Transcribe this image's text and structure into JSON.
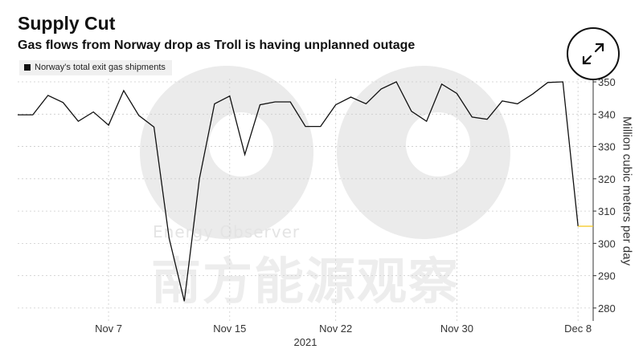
{
  "title": "Supply Cut",
  "subtitle": "Gas flows from Norway drop as Troll is having unplanned outage",
  "watermark": {
    "english": "Energy Observer",
    "chinese": "南方能源观察"
  },
  "expand_icon": "expand-arrows-icon",
  "colors": {
    "line": "#111111",
    "last_marker": "#f5c518",
    "grid": "#cccccc",
    "watermark": "#ebebeb"
  },
  "chart_data": {
    "type": "line",
    "title": "Supply Cut",
    "subtitle": "Gas flows from Norway drop as Troll is having unplanned outage",
    "ylabel": "Million cubic meters per day",
    "xlabel": "2021",
    "ylim": [
      276,
      351
    ],
    "yticks": [
      280,
      290,
      300,
      310,
      320,
      330,
      340,
      350
    ],
    "ytick_labels": [
      "280",
      "290",
      "300",
      "310",
      "320",
      "330",
      "340",
      "350"
    ],
    "xticks": [
      {
        "x": 6,
        "label": "Nov 7"
      },
      {
        "x": 14,
        "label": "Nov 15"
      },
      {
        "x": 21,
        "label": "Nov 22"
      },
      {
        "x": 29,
        "label": "Nov 30"
      },
      {
        "x": 37,
        "label": "Dec 8"
      }
    ],
    "grid": true,
    "legend": "top-left",
    "series": [
      {
        "name": "Norway's total exit gas shipments",
        "x": [
          0,
          1,
          2,
          3,
          4,
          5,
          6,
          7,
          8,
          9,
          10,
          11,
          12,
          13,
          14,
          15,
          16,
          17,
          18,
          19,
          20,
          21,
          22,
          23,
          24,
          25,
          26,
          27,
          28,
          29,
          30,
          31,
          32,
          33,
          34,
          35,
          36,
          37,
          38
        ],
        "values": [
          339.8,
          339.8,
          345.8,
          343.6,
          337.8,
          340.7,
          336.6,
          347.3,
          339.6,
          336.0,
          301.6,
          282.1,
          320.0,
          343.2,
          345.6,
          327.5,
          342.9,
          343.8,
          343.8,
          336.2,
          336.2,
          342.9,
          345.3,
          343.2,
          347.8,
          350.0,
          340.9,
          337.8,
          349.3,
          346.4,
          339.1,
          338.4,
          344.1,
          343.2,
          346.2,
          349.8,
          350.0,
          305.3,
          305.3
        ]
      }
    ]
  }
}
